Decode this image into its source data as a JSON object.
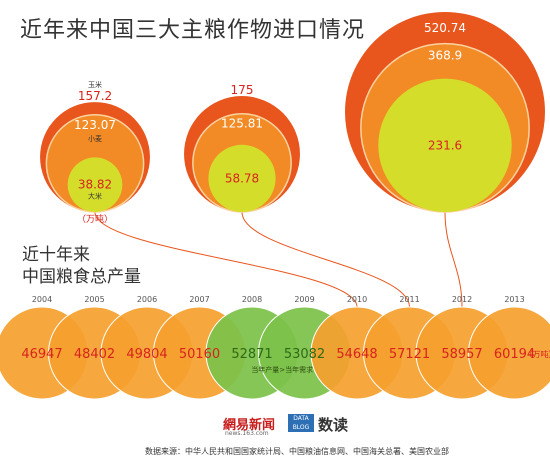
{
  "page": {
    "title": "近年来中国三大主粮作物进口情况",
    "subtitle_line1": "近十年来",
    "subtitle_line2": "中国粮食总产量",
    "logo_text": "網易新闻",
    "logo_sub": "news.163.com",
    "logo_badge": "DATA BLOG",
    "logo_name": "数读",
    "source": "数据来源：中华人民共和国国家统计局、中国粮油信息网、中国海关总署、美国农业部"
  },
  "colors": {
    "corn": "#e8561e",
    "wheat": "#f28a26",
    "rice": "#d4de2a",
    "production": "#f5a02e",
    "surplus": "#7cc24a",
    "value_red": "#d8231e",
    "value_white": "#ffffff",
    "year_text": "#555555"
  },
  "chart_data": [
    {
      "type": "bubble",
      "unit_label": "（万吨）",
      "series_labels": {
        "corn": "玉米",
        "wheat": "小麦",
        "rice": "大米"
      },
      "years": [
        {
          "year": "2010",
          "corn": 157.2,
          "wheat": 123.07,
          "rice": 38.82
        },
        {
          "year": "2011",
          "corn": 175,
          "wheat": 125.81,
          "rice": 58.78
        },
        {
          "year": "2012",
          "corn": 520.74,
          "wheat": 368.9,
          "rice": 231.6
        }
      ]
    },
    {
      "type": "bubble",
      "unit_label": "（万吨）",
      "annotation": "当年产量>当年需求",
      "categories": [
        "2004",
        "2005",
        "2006",
        "2007",
        "2008",
        "2009",
        "2010",
        "2011",
        "2012",
        "2013"
      ],
      "values": [
        46947,
        48402,
        49804,
        50160,
        52871,
        53082,
        54648,
        57121,
        58957,
        60194
      ],
      "highlighted": [
        "2008",
        "2009"
      ]
    }
  ]
}
